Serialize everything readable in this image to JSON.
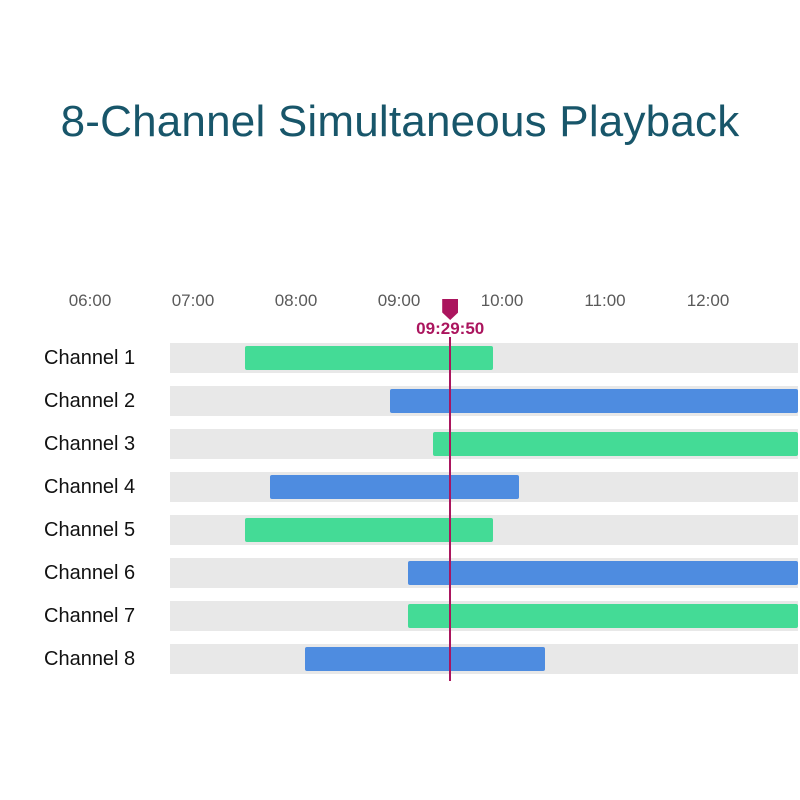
{
  "page_title": "8-Channel Simultaneous Playback",
  "chart_data": {
    "type": "bar",
    "subtype": "gantt-timeline",
    "title": "8-Channel Simultaneous Playback",
    "x_axis": {
      "ticks": [
        "06:00",
        "07:00",
        "08:00",
        "09:00",
        "10:00",
        "11:00",
        "12:00"
      ],
      "tick_hours": [
        6,
        7,
        8,
        9,
        10,
        11,
        12
      ],
      "visible_window_hours": [
        6.78,
        12.87
      ],
      "gridlines": false
    },
    "playhead": {
      "label": "09:29:50",
      "hours": 9.4972
    },
    "series": [
      {
        "label": "Channel 1",
        "color_key": "green",
        "start": "07:30",
        "end": "09:55",
        "start_hours": 7.5,
        "end_hours": 9.917,
        "runs_to_edge": false
      },
      {
        "label": "Channel 2",
        "color_key": "blue",
        "start": "08:55",
        "end": null,
        "start_hours": 8.917,
        "end_hours": 12.87,
        "runs_to_edge": true
      },
      {
        "label": "Channel 3",
        "color_key": "green",
        "start": "09:20",
        "end": null,
        "start_hours": 9.333,
        "end_hours": 12.87,
        "runs_to_edge": true
      },
      {
        "label": "Channel 4",
        "color_key": "blue",
        "start": "07:45",
        "end": "10:10",
        "start_hours": 7.75,
        "end_hours": 10.167,
        "runs_to_edge": false
      },
      {
        "label": "Channel 5",
        "color_key": "green",
        "start": "07:30",
        "end": "09:55",
        "start_hours": 7.5,
        "end_hours": 9.917,
        "runs_to_edge": false
      },
      {
        "label": "Channel 6",
        "color_key": "blue",
        "start": "09:05",
        "end": null,
        "start_hours": 9.083,
        "end_hours": 12.87,
        "runs_to_edge": true
      },
      {
        "label": "Channel 7",
        "color_key": "green",
        "start": "09:05",
        "end": null,
        "start_hours": 9.083,
        "end_hours": 12.87,
        "runs_to_edge": true
      },
      {
        "label": "Channel 8",
        "color_key": "blue",
        "start": "08:05",
        "end": "10:25",
        "start_hours": 8.083,
        "end_hours": 10.417,
        "runs_to_edge": false
      }
    ],
    "colors": {
      "green": "#44db96",
      "blue": "#4e8ce0",
      "track": "#e8e8e8",
      "playhead": "#ab155e",
      "title_text": "#18566a",
      "axis_text": "#5a5a5a",
      "row_label_text": "#111111"
    },
    "legend": null
  }
}
